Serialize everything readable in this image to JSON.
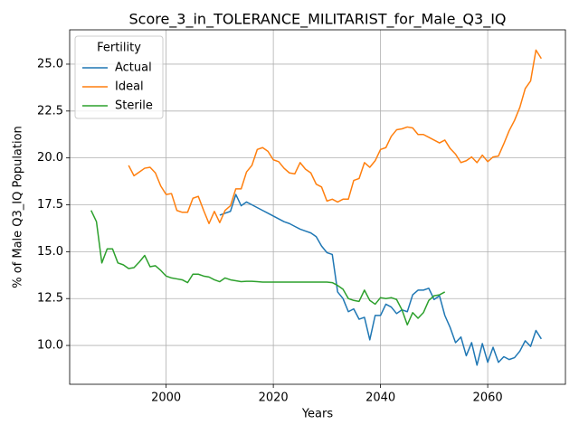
{
  "chart_data": {
    "type": "line",
    "title": "Score_3_in_TOLERANCE_MILITARIST_for_Male_Q3_IQ",
    "xlabel": "Years",
    "ylabel": "% of Male Q3_IQ Population",
    "x": [
      1986,
      1987,
      1988,
      1989,
      1990,
      1991,
      1992,
      1993,
      1994,
      1995,
      1996,
      1997,
      1998,
      1999,
      2000,
      2001,
      2002,
      2003,
      2004,
      2005,
      2006,
      2007,
      2008,
      2009,
      2010,
      2011,
      2012,
      2013,
      2014,
      2015,
      2016,
      2017,
      2018,
      2019,
      2020,
      2021,
      2022,
      2023,
      2024,
      2025,
      2026,
      2027,
      2028,
      2029,
      2030,
      2031,
      2032,
      2033,
      2034,
      2035,
      2036,
      2037,
      2038,
      2039,
      2040,
      2041,
      2042,
      2043,
      2044,
      2045,
      2046,
      2047,
      2048,
      2049,
      2050,
      2051,
      2052,
      2053,
      2054,
      2055,
      2056,
      2057,
      2058,
      2059,
      2060,
      2061,
      2062,
      2063,
      2064,
      2065,
      2066,
      2067,
      2068,
      2069,
      2070
    ],
    "series": [
      {
        "name": "Actual",
        "color": "#1f77b4",
        "values": [
          null,
          null,
          null,
          null,
          null,
          null,
          null,
          null,
          null,
          null,
          null,
          null,
          null,
          null,
          null,
          null,
          null,
          null,
          null,
          null,
          null,
          null,
          null,
          null,
          16.95,
          17.05,
          17.15,
          18.05,
          17.45,
          17.65,
          17.5,
          17.35,
          17.2,
          17.05,
          16.9,
          16.75,
          16.6,
          16.5,
          16.35,
          16.2,
          16.1,
          16.0,
          15.8,
          15.3,
          14.95,
          14.85,
          12.85,
          12.5,
          11.8,
          11.95,
          11.4,
          11.5,
          10.3,
          11.6,
          11.6,
          12.2,
          12.05,
          11.7,
          11.9,
          11.8,
          12.7,
          12.95,
          12.95,
          13.05,
          12.45,
          12.65,
          11.6,
          10.95,
          10.15,
          10.45,
          9.45,
          10.15,
          8.95,
          10.1,
          9.1,
          9.9,
          9.1,
          9.4,
          9.25,
          9.35,
          9.7,
          10.25,
          9.95,
          10.8,
          10.35
        ]
      },
      {
        "name": "Ideal",
        "color": "#ff7f0e",
        "values": [
          null,
          null,
          null,
          null,
          null,
          null,
          null,
          19.6,
          19.05,
          19.25,
          19.45,
          19.5,
          19.2,
          18.5,
          18.05,
          18.1,
          17.2,
          17.1,
          17.1,
          17.85,
          17.95,
          17.2,
          16.5,
          17.15,
          16.55,
          17.2,
          17.45,
          18.35,
          18.35,
          19.25,
          19.6,
          20.45,
          20.55,
          20.35,
          19.9,
          19.8,
          19.45,
          19.2,
          19.15,
          19.75,
          19.4,
          19.2,
          18.6,
          18.45,
          17.7,
          17.8,
          17.65,
          17.8,
          17.8,
          18.8,
          18.9,
          19.75,
          19.5,
          19.85,
          20.45,
          20.55,
          21.15,
          21.5,
          21.55,
          21.65,
          21.6,
          21.25,
          21.25,
          21.1,
          20.95,
          20.8,
          20.95,
          20.5,
          20.2,
          19.75,
          19.85,
          20.05,
          19.75,
          20.15,
          19.8,
          20.05,
          20.1,
          20.75,
          21.45,
          22.0,
          22.7,
          23.7,
          24.1,
          25.75,
          25.3
        ]
      },
      {
        "name": "Sterile",
        "color": "#2ca02c",
        "values": [
          17.2,
          16.6,
          14.4,
          15.15,
          15.15,
          14.4,
          14.3,
          14.1,
          14.15,
          14.45,
          14.8,
          14.2,
          14.25,
          14.0,
          13.7,
          13.6,
          13.55,
          13.5,
          13.35,
          13.8,
          13.8,
          13.7,
          13.65,
          13.5,
          13.4,
          13.6,
          13.5,
          13.45,
          13.4,
          13.42,
          13.42,
          13.4,
          13.38,
          13.38,
          13.38,
          13.38,
          13.38,
          13.38,
          13.38,
          13.38,
          13.38,
          13.38,
          13.38,
          13.38,
          13.38,
          13.35,
          13.2,
          13.0,
          12.5,
          12.4,
          12.35,
          12.95,
          12.4,
          12.2,
          12.55,
          12.5,
          12.55,
          12.45,
          11.9,
          11.1,
          11.75,
          11.45,
          11.75,
          12.4,
          12.65,
          12.7,
          12.85,
          null,
          null,
          null,
          null,
          null,
          null,
          null,
          null,
          null,
          null,
          null,
          null,
          null,
          null,
          null,
          null,
          null,
          null
        ]
      }
    ],
    "xlim": [
      1982,
      2074.5
    ],
    "xticks": [
      2000,
      2020,
      2040,
      2060
    ],
    "ylim": [
      7.93,
      26.83
    ],
    "yticks": [
      {
        "value": 10,
        "label": "10.0"
      },
      12.5,
      {
        "value": 15,
        "label": "15.0"
      },
      17.5,
      {
        "value": 20,
        "label": "20.0"
      },
      22.5,
      {
        "value": 25,
        "label": "25.0"
      }
    ],
    "grid": true,
    "legend": {
      "title": "Fertility",
      "loc": "upper left"
    }
  }
}
